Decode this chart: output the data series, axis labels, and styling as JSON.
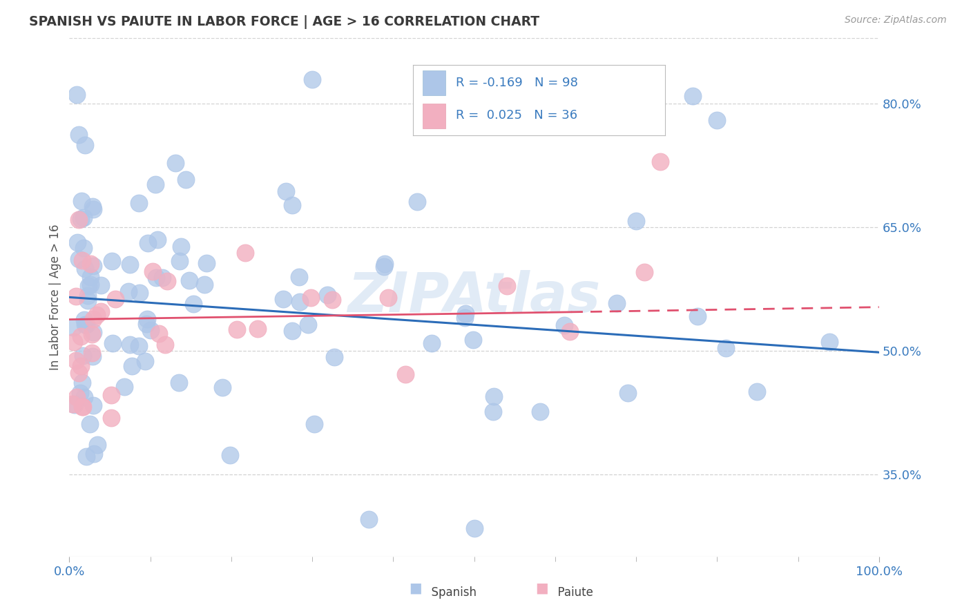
{
  "title": "SPANISH VS PAIUTE IN LABOR FORCE | AGE > 16 CORRELATION CHART",
  "source_text": "Source: ZipAtlas.com",
  "ylabel": "In Labor Force | Age > 16",
  "xlim": [
    0.0,
    1.0
  ],
  "ylim": [
    0.25,
    0.88
  ],
  "yticks": [
    0.35,
    0.5,
    0.65,
    0.8
  ],
  "ytick_labels": [
    "35.0%",
    "50.0%",
    "65.0%",
    "80.0%"
  ],
  "xtick_labels": [
    "0.0%",
    "100.0%"
  ],
  "spanish_R": -0.169,
  "spanish_N": 98,
  "paiute_R": 0.025,
  "paiute_N": 36,
  "spanish_color": "#adc6e8",
  "paiute_color": "#f2afc0",
  "spanish_line_color": "#2b6cb8",
  "paiute_line_color": "#e0506e",
  "background_color": "#ffffff",
  "grid_color": "#c8c8c8",
  "title_color": "#3a3a3a",
  "axis_label_color": "#3a7bbf",
  "watermark": "ZIPAtlas",
  "sp_trend_x0": 0.0,
  "sp_trend_y0": 0.565,
  "sp_trend_x1": 1.0,
  "sp_trend_y1": 0.498,
  "pa_trend_x0": 0.0,
  "pa_trend_y0": 0.538,
  "pa_trend_x1": 0.62,
  "pa_trend_y1": 0.547,
  "pa_trend_dash_x0": 0.62,
  "pa_trend_dash_x1": 1.0,
  "pa_trend_dash_y0": 0.547,
  "pa_trend_dash_y1": 0.553
}
